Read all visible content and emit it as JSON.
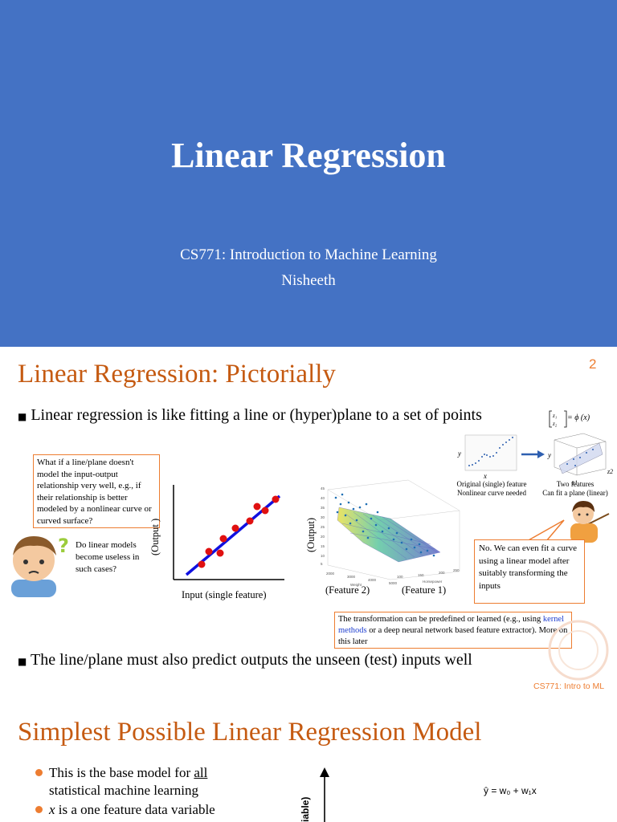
{
  "slide1": {
    "title": "Linear Regression",
    "course": "CS771: Introduction to Machine Learning",
    "author": "Nisheeth",
    "background": "#4472c4"
  },
  "slide2": {
    "title": "Linear Regression: Pictorially",
    "page_number": "2",
    "bullet1": "Linear regression is like fitting a line or (hyper)plane to a set of points",
    "bullet2": "The line/plane must also predict outputs the unseen (test) inputs well",
    "phi_formula": "= ϕ (x)",
    "callout_question": "What if a line/plane doesn't model the input-output relationship very well, e.g., if their relationship is better modeled by a nonlinear curve or curved surface?",
    "callout_linear": "Do linear models become useless in such cases?",
    "callout_answer": "No. We can even fit a curve using a linear model after suitably transforming the inputs",
    "transform_pre": "The transformation  can be predefined or learned (e.g., using ",
    "transform_link": "kernel methods",
    "transform_post": " or a deep neural network based feature extractor). More on this later",
    "plot1_ylabel": "(Output )",
    "plot1_xlabel": "Input  (single feature)",
    "plot2_ylabel": "(Output)",
    "plot2_feature2": "(Feature 2)",
    "plot2_feature1": "(Feature 1)",
    "orig_caption1": "Original (single) feature",
    "orig_caption2": "Nonlinear curve needed",
    "two_caption1": "Two features",
    "two_caption2": "Can fit a plane (linear)",
    "axis_x": "x",
    "axis_y": "y",
    "axis_z1": "z1",
    "axis_z2": "z2",
    "footer": "CS771: Intro to ML",
    "accent": "#c55a11",
    "callout_border": "#ed7d31"
  },
  "slide3": {
    "title": "Simplest Possible Linear Regression Model",
    "bullet1_pre": "This is the base model for ",
    "bullet1_u": "all",
    "bullet1_line2": "statistical machine learning",
    "bullet2_var": "x",
    "bullet2_rest": " is a one feature data variable",
    "equation": "ŷ = w₀ + w₁x",
    "axis_label": "iable)"
  }
}
